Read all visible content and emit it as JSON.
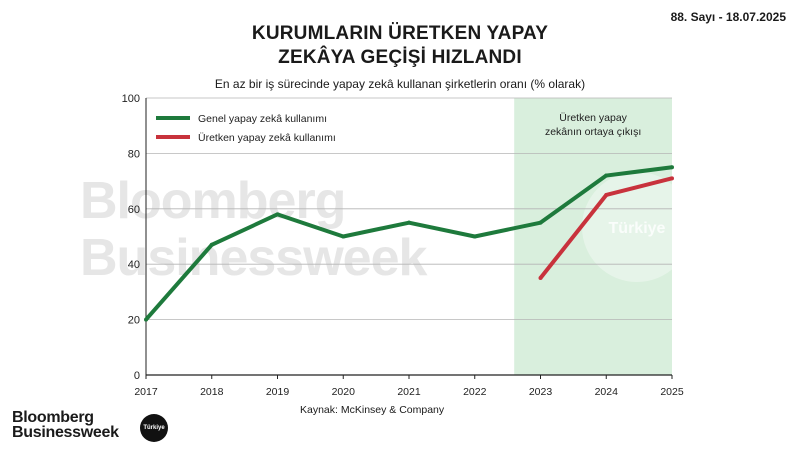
{
  "header": {
    "issue": "88. Sayı - 18.07.2025"
  },
  "chart_data": {
    "type": "line",
    "title_lines": [
      "KURUMLARIN ÜRETKEN YAPAY",
      "ZEKÂYA GEÇİŞİ HIZLANDI"
    ],
    "subtitle": "En az bir iş sürecinde yapay zekâ kullanan şirketlerin oranı (% olarak)",
    "x": [
      2017,
      2018,
      2019,
      2020,
      2021,
      2022,
      2023,
      2024,
      2025
    ],
    "x_tick_labels": [
      "2017",
      "2018",
      "2019",
      "2020",
      "2021",
      "2022",
      "2023",
      "2024",
      "2025"
    ],
    "y_ticks": [
      0,
      20,
      40,
      60,
      80,
      100
    ],
    "ylim": [
      0,
      100
    ],
    "grid": true,
    "legend_position": "top-left",
    "series": [
      {
        "name": "Genel yapay zekâ kullanımı",
        "color": "#1e7a3c",
        "x": [
          2017,
          2018,
          2019,
          2020,
          2021,
          2022,
          2023,
          2024,
          2025
        ],
        "values": [
          20,
          47,
          58,
          50,
          55,
          50,
          55,
          72,
          75
        ]
      },
      {
        "name": "Üretken yapay zekâ kullanımı",
        "color": "#c8323c",
        "x": [
          2023,
          2024,
          2025
        ],
        "values": [
          35,
          65,
          71
        ]
      }
    ],
    "highlight": {
      "x_start": 2022.6,
      "x_end": 2025,
      "label_lines": [
        "Üretken yapay",
        "zekânın ortaya çıkışı"
      ],
      "color": "#d9efdd"
    },
    "watermark": {
      "lines": [
        "Bloomberg",
        "Businessweek"
      ],
      "badge": "Türkiye"
    },
    "source": "Kaynak: McKinsey & Company"
  },
  "footer": {
    "logo_lines": [
      "Bloomberg",
      "Businessweek"
    ],
    "badge": "Türkiye"
  }
}
